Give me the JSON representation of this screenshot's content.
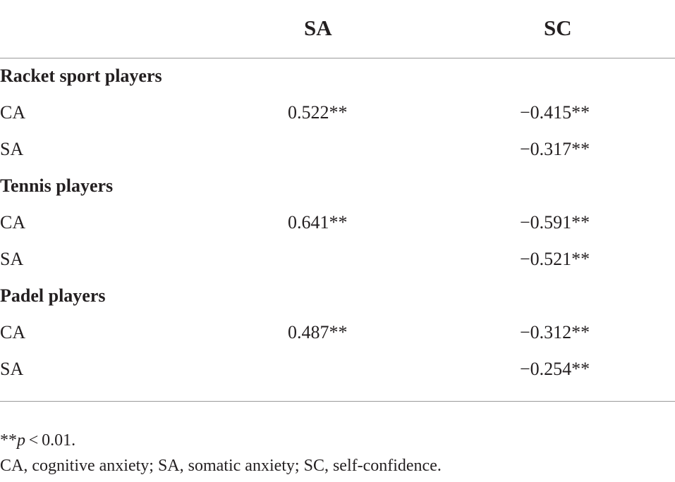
{
  "header": {
    "col_sa": "SA",
    "col_sc": "SC"
  },
  "groups": [
    {
      "title": "Racket sport players",
      "rows": [
        {
          "label": "CA",
          "sa": "0.522**",
          "sc": "−0.415**"
        },
        {
          "label": "SA",
          "sa": "",
          "sc": "−0.317**"
        }
      ]
    },
    {
      "title": "Tennis players",
      "rows": [
        {
          "label": "CA",
          "sa": "0.641**",
          "sc": "−0.591**"
        },
        {
          "label": "SA",
          "sa": "",
          "sc": "−0.521**"
        }
      ]
    },
    {
      "title": "Padel players",
      "rows": [
        {
          "label": "CA",
          "sa": "0.487**",
          "sc": "−0.312**"
        },
        {
          "label": "SA",
          "sa": "",
          "sc": "−0.254**"
        }
      ]
    }
  ],
  "footnotes": {
    "significance_prefix": "**",
    "significance_p": "p",
    "significance_suffix": " < 0.01.",
    "abbreviations": "CA, cognitive anxiety; SA, somatic anxiety; SC, self-confidence."
  }
}
